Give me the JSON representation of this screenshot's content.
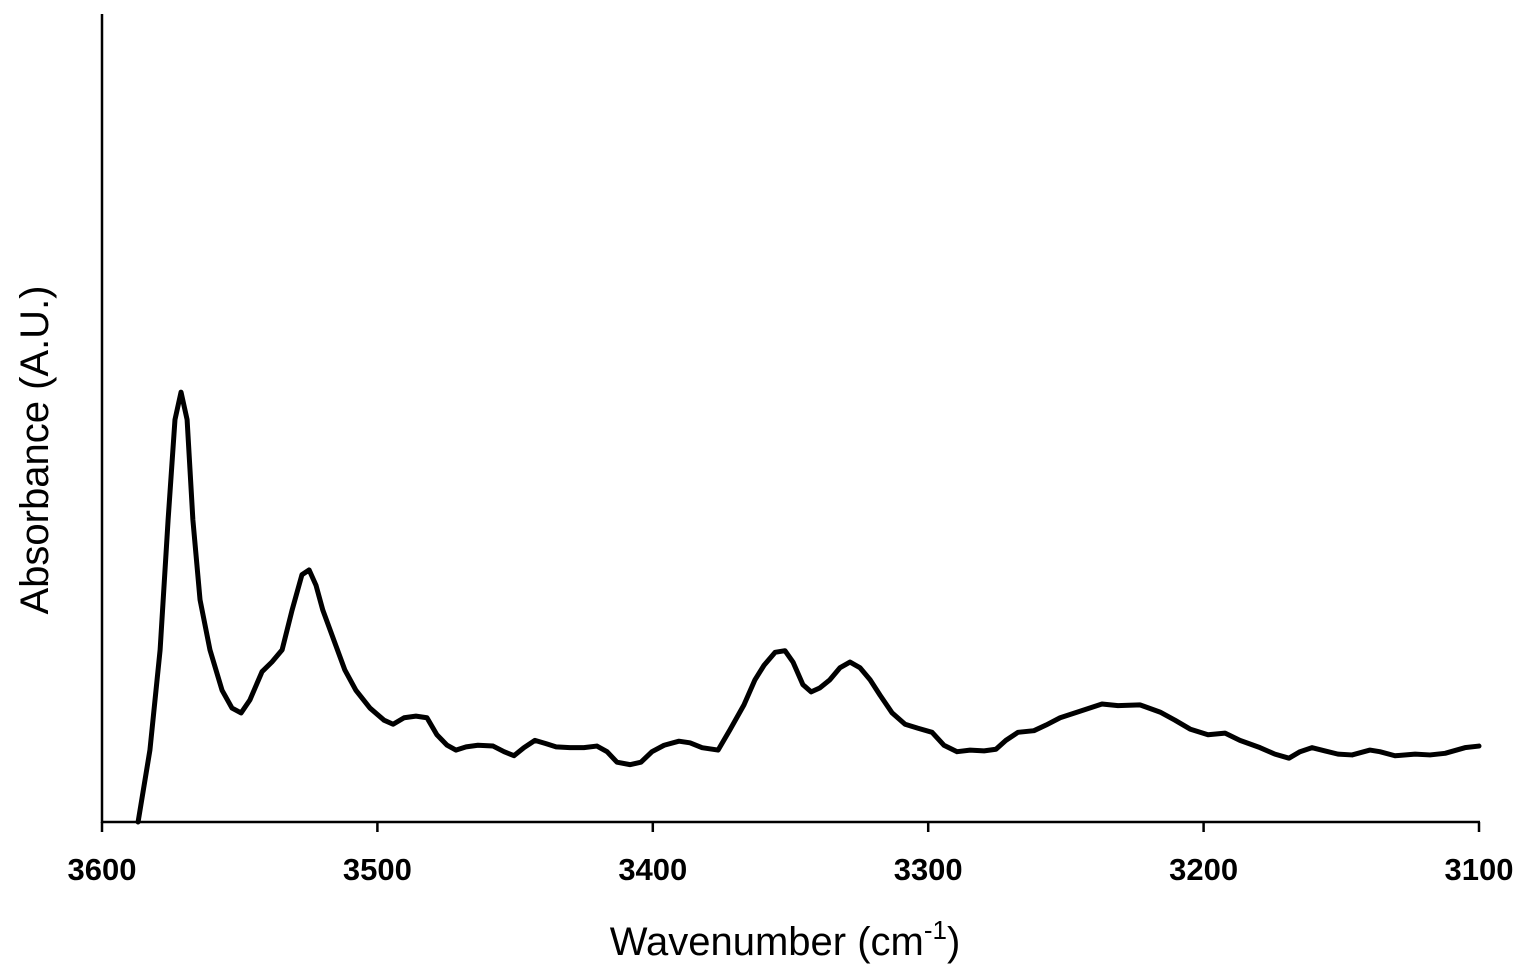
{
  "chart_data": {
    "type": "line",
    "xlabel": {
      "text": "Wavenumber (cm",
      "superscript": "-1",
      "suffix": ")"
    },
    "ylabel": "Absorbance (A.U.)",
    "xlim": [
      3600,
      3100
    ],
    "xticks": [
      3600,
      3500,
      3400,
      3300,
      3200,
      3100
    ],
    "ylim": [
      0,
      1
    ],
    "color": "#000000",
    "x": [
      3586.9,
      3582.6,
      3578.9,
      3576.0,
      3573.5,
      3571.3,
      3569.1,
      3567.0,
      3564.4,
      3560.8,
      3556.4,
      3552.8,
      3549.5,
      3546.3,
      3541.9,
      3538.3,
      3534.6,
      3531.0,
      3527.4,
      3524.8,
      3522.3,
      3519.8,
      3515.8,
      3511.8,
      3507.8,
      3502.7,
      3497.6,
      3494.3,
      3490.3,
      3486.0,
      3482.0,
      3478.4,
      3474.7,
      3471.5,
      3467.8,
      3463.5,
      3458.0,
      3454.0,
      3450.4,
      3446.8,
      3442.8,
      3438.8,
      3435.1,
      3430.1,
      3425.0,
      3420.3,
      3416.6,
      3413.0,
      3408.3,
      3404.3,
      3400.3,
      3395.9,
      3390.5,
      3386.5,
      3382.1,
      3376.3,
      3372.0,
      3366.9,
      3362.9,
      3359.6,
      3355.6,
      3352.0,
      3349.1,
      3345.5,
      3342.5,
      3339.3,
      3335.7,
      3332.0,
      3328.4,
      3324.8,
      3321.1,
      3317.5,
      3313.1,
      3308.4,
      3303.7,
      3298.6,
      3294.3,
      3289.5,
      3284.8,
      3279.7,
      3275.4,
      3271.8,
      3267.4,
      3261.6,
      3257.2,
      3252.1,
      3244.9,
      3236.9,
      3231.1,
      3223.1,
      3215.8,
      3210.4,
      3204.9,
      3198.4,
      3192.2,
      3186.8,
      3179.5,
      3174.1,
      3169.0,
      3165.0,
      3160.6,
      3155.9,
      3151.2,
      3146.1,
      3139.6,
      3136.0,
      3130.5,
      3123.2,
      3117.8,
      3112.3,
      3105.1,
      3100.0
    ],
    "y": [
      0,
      0.089,
      0.213,
      0.374,
      0.498,
      0.532,
      0.498,
      0.374,
      0.275,
      0.213,
      0.163,
      0.141,
      0.135,
      0.151,
      0.186,
      0.198,
      0.213,
      0.262,
      0.306,
      0.312,
      0.293,
      0.262,
      0.225,
      0.188,
      0.163,
      0.141,
      0.126,
      0.121,
      0.129,
      0.131,
      0.129,
      0.108,
      0.095,
      0.089,
      0.093,
      0.095,
      0.094,
      0.087,
      0.082,
      0.092,
      0.101,
      0.097,
      0.093,
      0.092,
      0.092,
      0.094,
      0.087,
      0.074,
      0.071,
      0.074,
      0.087,
      0.095,
      0.1,
      0.098,
      0.092,
      0.089,
      0.114,
      0.145,
      0.176,
      0.194,
      0.21,
      0.212,
      0.198,
      0.17,
      0.161,
      0.166,
      0.176,
      0.191,
      0.198,
      0.191,
      0.176,
      0.157,
      0.135,
      0.121,
      0.116,
      0.111,
      0.095,
      0.087,
      0.089,
      0.088,
      0.09,
      0.101,
      0.111,
      0.113,
      0.12,
      0.129,
      0.137,
      0.146,
      0.144,
      0.145,
      0.136,
      0.126,
      0.115,
      0.108,
      0.11,
      0.101,
      0.092,
      0.084,
      0.079,
      0.087,
      0.092,
      0.088,
      0.084,
      0.083,
      0.089,
      0.087,
      0.082,
      0.084,
      0.083,
      0.085,
      0.092,
      0.094
    ]
  }
}
